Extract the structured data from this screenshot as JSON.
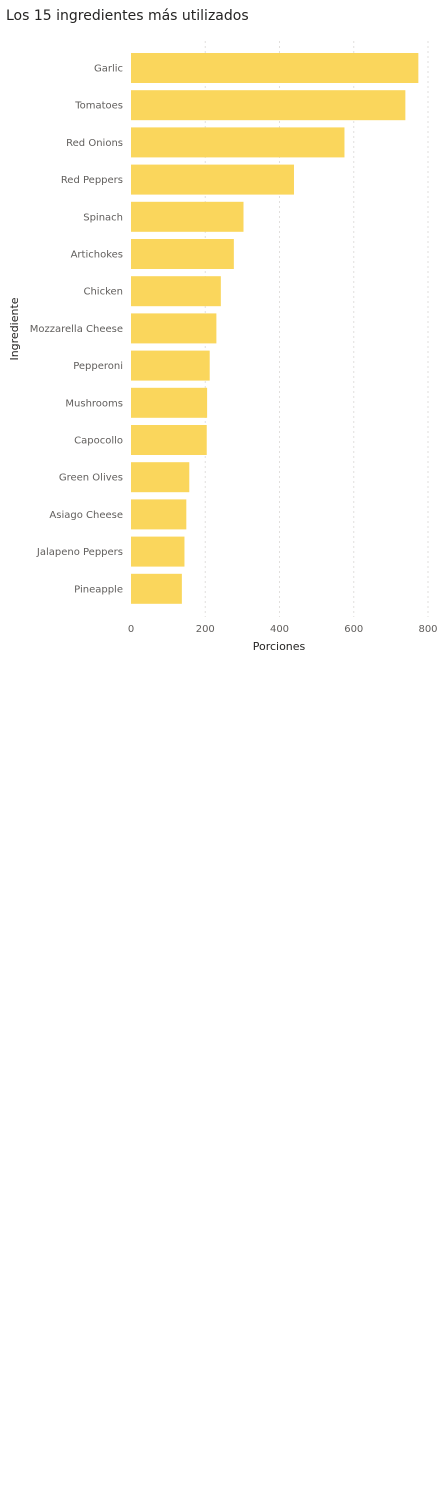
{
  "chart_data": {
    "type": "bar",
    "orientation": "horizontal",
    "title": "Los 15 ingredientes más utilizados",
    "xlabel": "Porciones",
    "ylabel": "Ingrediente",
    "categories": [
      "Garlic",
      "Tomatoes",
      "Red Onions",
      "Red Peppers",
      "Spinach",
      "Artichokes",
      "Chicken",
      "Mozzarella Cheese",
      "Pepperoni",
      "Mushrooms",
      "Capocollo",
      "Green Olives",
      "Asiago Cheese",
      "Jalapeno Peppers",
      "Pineapple"
    ],
    "values": [
      774,
      739,
      575,
      439,
      303,
      277,
      242,
      230,
      212,
      205,
      204,
      157,
      149,
      144,
      137
    ],
    "xlim": [
      0,
      800
    ],
    "xticks": [
      0,
      200,
      400,
      600,
      800
    ],
    "grid": true,
    "bar_color": "#fad65c"
  }
}
